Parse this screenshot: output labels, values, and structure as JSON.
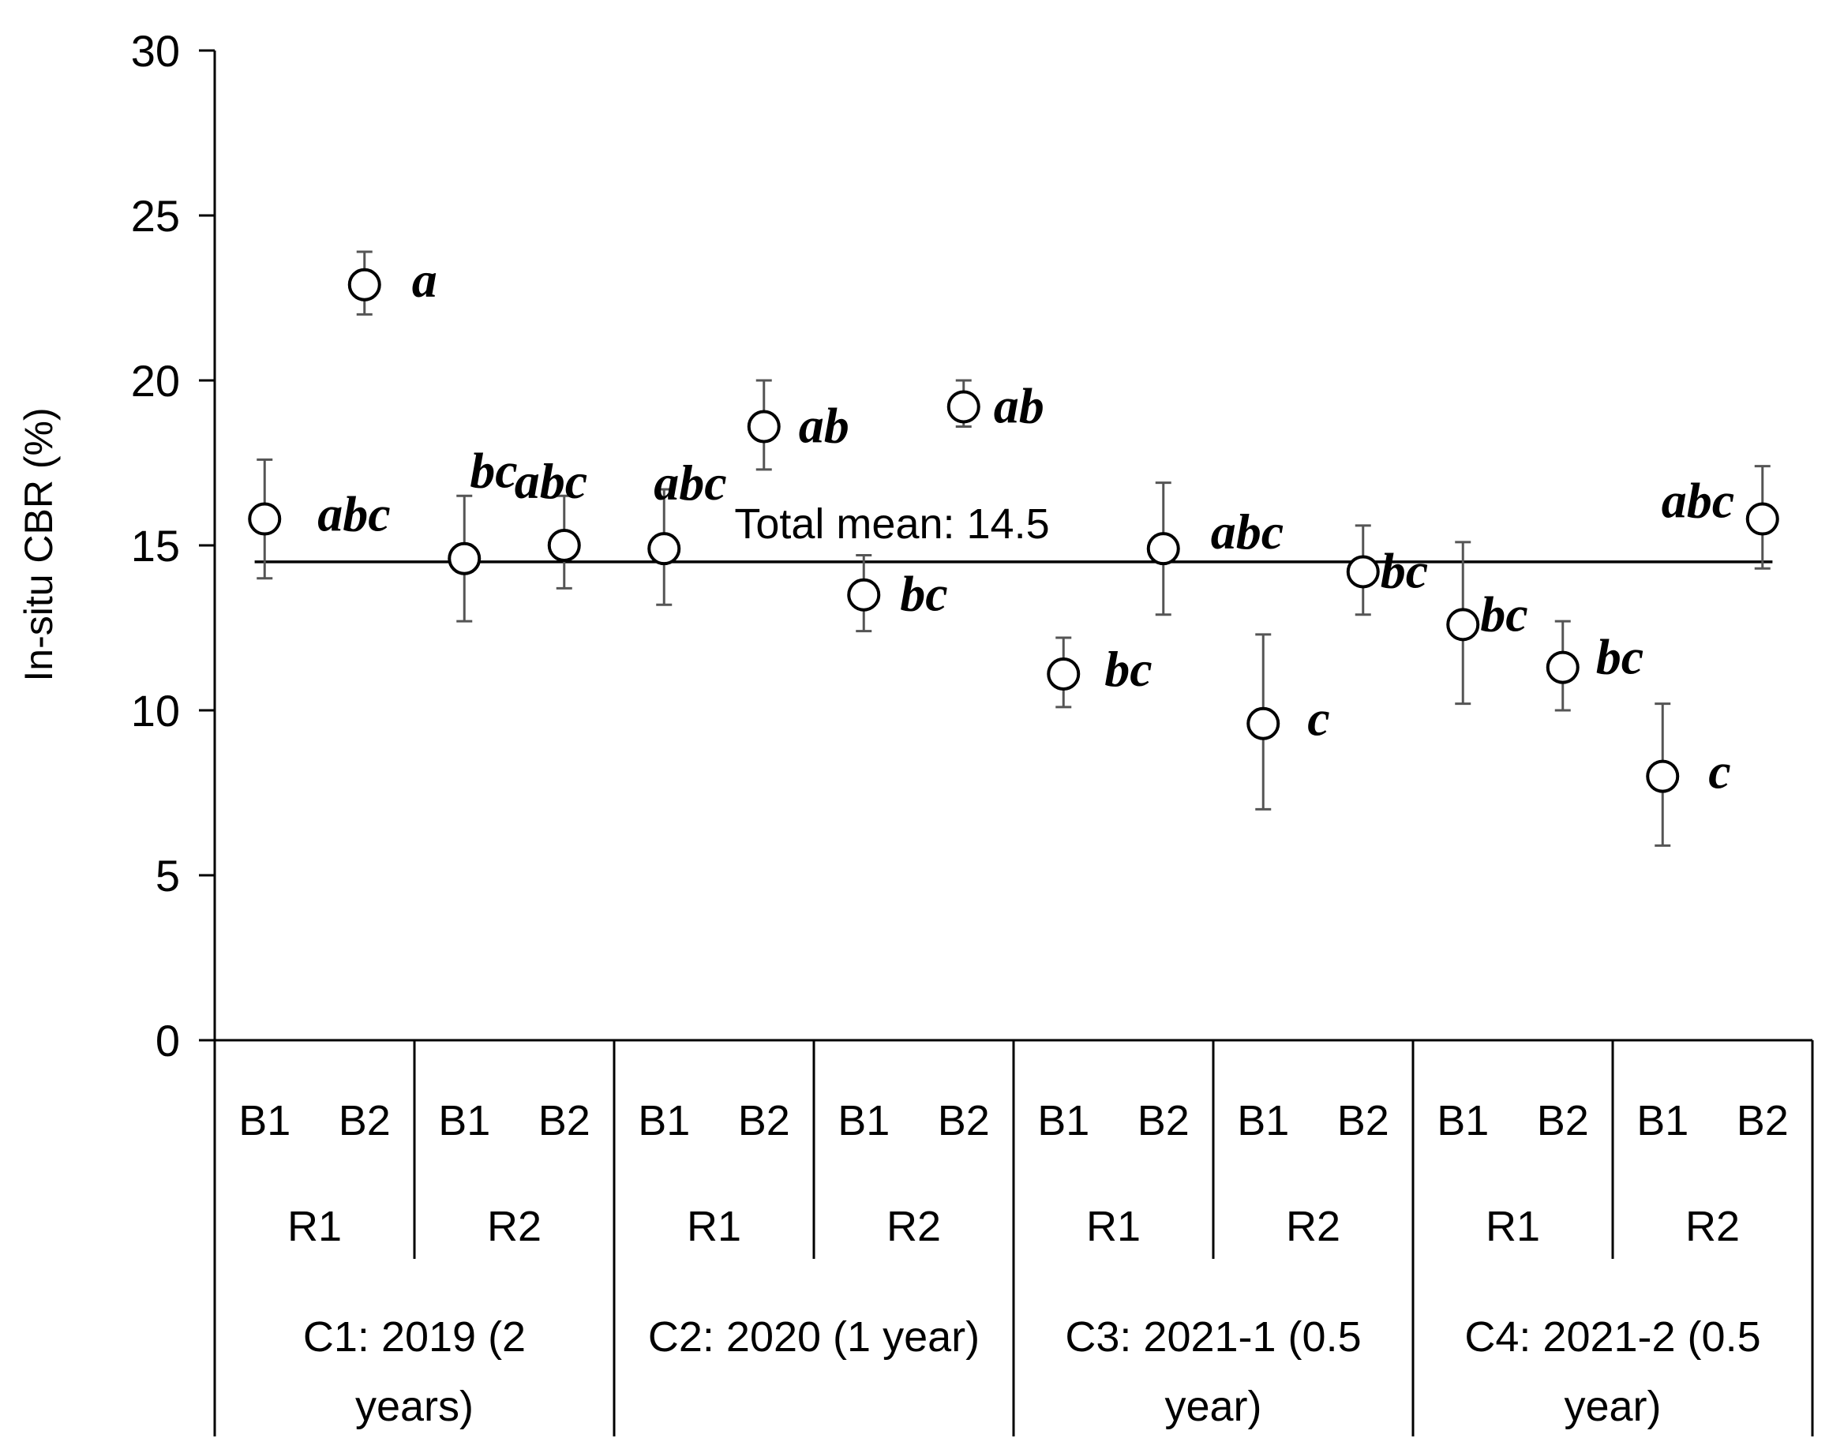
{
  "chart_data": {
    "type": "scatter",
    "ylabel": "In-situ CBR (%)",
    "ylim": [
      0,
      30
    ],
    "yticks": [
      "0",
      "5",
      "10",
      "15",
      "20",
      "25",
      "30"
    ],
    "grid": false,
    "legend": "none",
    "mean_line": {
      "value": 14.5,
      "label": "Total mean: 14.5"
    },
    "categories": [
      "C1 R1 B1",
      "C1 R1 B2",
      "C1 R2 B1",
      "C1 R2 B2",
      "C2 R1 B1",
      "C2 R1 B2",
      "C2 R2 B1",
      "C2 R2 B2",
      "C3 R1 B1",
      "C3 R1 B2",
      "C3 R2 B1",
      "C3 R2 B2",
      "C4 R1 B1",
      "C4 R1 B2",
      "C4 R2 B1",
      "C4 R2 B2"
    ],
    "b_labels": [
      "B1",
      "B2",
      "B1",
      "B2",
      "B1",
      "B2",
      "B1",
      "B2",
      "B1",
      "B2",
      "B1",
      "B2",
      "B1",
      "B2",
      "B1",
      "B2"
    ],
    "r_labels": [
      "R1",
      "R2",
      "R1",
      "R2",
      "R1",
      "R2",
      "R1",
      "R2"
    ],
    "c_labels": [
      [
        "C1: 2019 (2",
        "years)"
      ],
      [
        "C2: 2020 (1 year)",
        ""
      ],
      [
        "C3: 2021-1 (0.5",
        "year)"
      ],
      [
        "C4: 2021-2 (0.5",
        "year)"
      ]
    ],
    "values": [
      15.8,
      22.9,
      14.6,
      15.0,
      14.9,
      18.6,
      13.5,
      19.2,
      11.1,
      14.9,
      9.6,
      14.2,
      12.6,
      11.3,
      8.0,
      15.8
    ],
    "error_low": [
      14.0,
      22.0,
      12.7,
      13.7,
      13.2,
      17.3,
      12.4,
      18.6,
      10.1,
      12.9,
      7.0,
      12.9,
      10.2,
      10.0,
      5.9,
      14.3
    ],
    "error_high": [
      17.6,
      23.9,
      16.5,
      16.5,
      16.7,
      20.0,
      14.7,
      20.0,
      12.2,
      16.9,
      12.3,
      15.6,
      15.1,
      12.7,
      10.2,
      17.4
    ],
    "significance": [
      "abc",
      "a",
      "bc",
      "abc",
      "abc",
      "ab",
      "bc",
      "ab",
      "bc",
      "abc",
      "c",
      "bc",
      "bc",
      "bc",
      "c",
      "abc"
    ]
  }
}
